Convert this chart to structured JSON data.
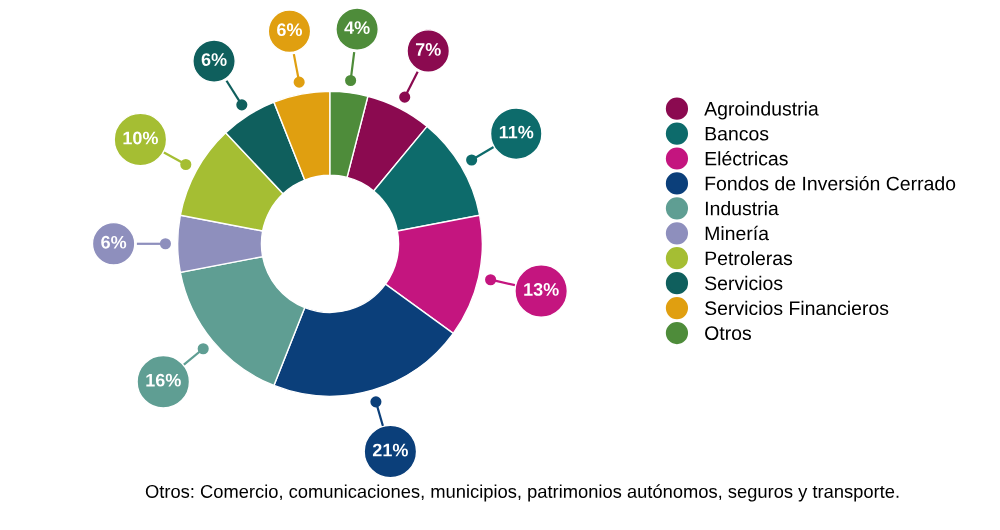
{
  "chart_data": {
    "type": "donut",
    "categories": [
      "Agroindustria",
      "Bancos",
      "Eléctricas",
      "Fondos de Inversión Cerrado",
      "Industria",
      "Minería",
      "Petroleras",
      "Servicios",
      "Servicios Financieros",
      "Otros"
    ],
    "values": [
      7,
      11,
      13,
      21,
      16,
      6,
      10,
      6,
      6,
      4
    ],
    "value_labels": [
      "7%",
      "11%",
      "13%",
      "21%",
      "16%",
      "6%",
      "10%",
      "6%",
      "6%",
      "4%"
    ],
    "colors": [
      "#8b0a50",
      "#0d6b6b",
      "#c4157f",
      "#0b3f7a",
      "#5f9e93",
      "#8e8fbd",
      "#a5be33",
      "#0f5f5d",
      "#e09f10",
      "#4e8c3a"
    ],
    "legend": "right",
    "annotations": [
      "Otros: Comercio, comunicaciones, municipios, patrimonios autónomos, seguros y transporte."
    ]
  }
}
